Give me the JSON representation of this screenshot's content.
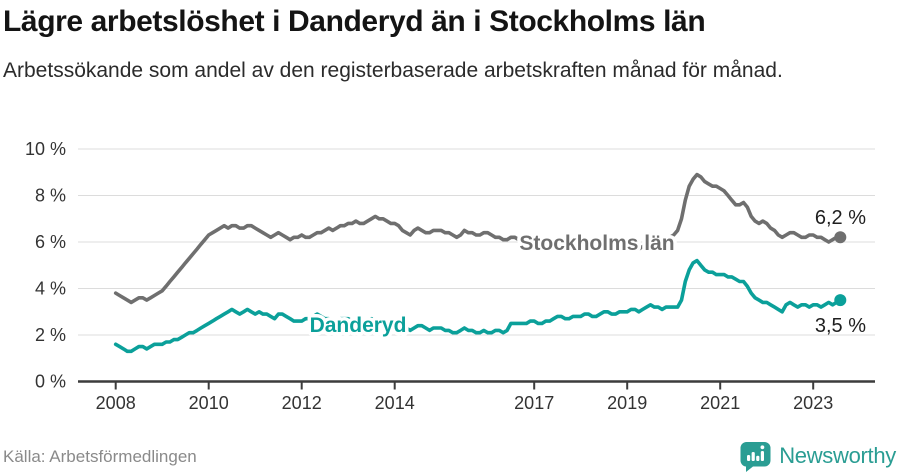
{
  "header": {
    "title": "Lägre arbetslöshet i Danderyd än i Stockholms län",
    "subtitle": "Arbetssökande som andel av den registerbaserade arbetskraften månad för månad."
  },
  "footer": {
    "source": "Källa: Arbetsförmedlingen",
    "brand": "Newsworthy"
  },
  "colors": {
    "grid": "#dcdcdc",
    "axis": "#3c3c3c",
    "tick_label": "#333333",
    "value_label": "#1f1f1f",
    "series_gray": "#6f6f6f",
    "series_teal": "#0ba09a",
    "brand_teal": "#2a9d93",
    "background": "#ffffff"
  },
  "chart_data": {
    "type": "line",
    "title": "Lägre arbetslöshet i Danderyd än i Stockholms län",
    "subtitle": "Arbetssökande som andel av den registerbaserade arbetskraften månad för månad.",
    "frequency": "monthly",
    "x_start": {
      "year": 2008,
      "month": 1
    },
    "x_end": {
      "year": 2023,
      "month": 8
    },
    "ylim": [
      0,
      10
    ],
    "grid": true,
    "legend_position": "inline-on-line",
    "yticks": {
      "values": [
        0,
        2,
        4,
        6,
        8,
        10
      ],
      "labels": [
        "0 %",
        "2 %",
        "4 %",
        "6 %",
        "8 %",
        "10 %"
      ]
    },
    "xticks": {
      "years": [
        2008,
        2010,
        2012,
        2014,
        2017,
        2019,
        2021,
        2023
      ],
      "labels": [
        "2008",
        "2010",
        "2012",
        "2014",
        "2017",
        "2019",
        "2021",
        "2023"
      ]
    },
    "series": [
      {
        "name": "Stockholms län",
        "color": "#6f6f6f",
        "end_label": "6,2 %",
        "values": [
          3.8,
          3.7,
          3.6,
          3.5,
          3.4,
          3.5,
          3.6,
          3.6,
          3.5,
          3.6,
          3.7,
          3.8,
          3.9,
          4.1,
          4.3,
          4.5,
          4.7,
          4.9,
          5.1,
          5.3,
          5.5,
          5.7,
          5.9,
          6.1,
          6.3,
          6.4,
          6.5,
          6.6,
          6.7,
          6.6,
          6.7,
          6.7,
          6.6,
          6.6,
          6.7,
          6.7,
          6.6,
          6.5,
          6.4,
          6.3,
          6.2,
          6.3,
          6.4,
          6.3,
          6.2,
          6.1,
          6.2,
          6.2,
          6.3,
          6.2,
          6.2,
          6.3,
          6.4,
          6.4,
          6.5,
          6.6,
          6.5,
          6.6,
          6.7,
          6.7,
          6.8,
          6.8,
          6.9,
          6.8,
          6.8,
          6.9,
          7.0,
          7.1,
          7.0,
          7.0,
          6.9,
          6.8,
          6.8,
          6.7,
          6.5,
          6.4,
          6.3,
          6.5,
          6.6,
          6.5,
          6.4,
          6.4,
          6.5,
          6.5,
          6.5,
          6.4,
          6.4,
          6.3,
          6.2,
          6.3,
          6.5,
          6.4,
          6.4,
          6.3,
          6.3,
          6.4,
          6.4,
          6.3,
          6.2,
          6.2,
          6.1,
          6.1,
          6.2,
          6.2,
          6.1,
          6.0,
          6.0,
          6.1,
          6.0,
          6.0,
          5.9,
          5.9,
          5.8,
          5.9,
          6.0,
          6.0,
          5.9,
          5.9,
          5.9,
          6.0,
          5.9,
          5.9,
          5.8,
          5.8,
          5.7,
          5.8,
          5.9,
          5.9,
          5.8,
          5.7,
          5.7,
          5.8,
          5.8,
          5.7,
          5.7,
          5.7,
          5.8,
          5.9,
          6.0,
          6.0,
          6.0,
          6.0,
          6.1,
          6.2,
          6.3,
          6.5,
          7.0,
          7.8,
          8.4,
          8.7,
          8.9,
          8.8,
          8.6,
          8.5,
          8.4,
          8.4,
          8.3,
          8.2,
          8.0,
          7.8,
          7.6,
          7.6,
          7.7,
          7.5,
          7.1,
          6.9,
          6.8,
          6.9,
          6.8,
          6.6,
          6.5,
          6.3,
          6.2,
          6.3,
          6.4,
          6.4,
          6.3,
          6.2,
          6.2,
          6.3,
          6.3,
          6.2,
          6.2,
          6.1,
          6.0,
          6.1,
          6.2,
          6.2
        ]
      },
      {
        "name": "Danderyd",
        "color": "#0ba09a",
        "end_label": "3,5 %",
        "values": [
          1.6,
          1.5,
          1.4,
          1.3,
          1.3,
          1.4,
          1.5,
          1.5,
          1.4,
          1.5,
          1.6,
          1.6,
          1.6,
          1.7,
          1.7,
          1.8,
          1.8,
          1.9,
          2.0,
          2.1,
          2.1,
          2.2,
          2.3,
          2.4,
          2.5,
          2.6,
          2.7,
          2.8,
          2.9,
          3.0,
          3.1,
          3.0,
          2.9,
          3.0,
          3.1,
          3.0,
          2.9,
          3.0,
          2.9,
          2.9,
          2.8,
          2.7,
          2.9,
          2.9,
          2.8,
          2.7,
          2.6,
          2.6,
          2.6,
          2.7,
          2.7,
          2.8,
          2.9,
          2.8,
          2.7,
          2.7,
          2.6,
          2.6,
          2.7,
          2.7,
          2.7,
          2.6,
          2.6,
          2.5,
          2.5,
          2.6,
          2.7,
          2.6,
          2.5,
          2.4,
          2.4,
          2.4,
          2.4,
          2.3,
          2.4,
          2.3,
          2.2,
          2.3,
          2.4,
          2.4,
          2.3,
          2.2,
          2.3,
          2.3,
          2.3,
          2.2,
          2.2,
          2.1,
          2.1,
          2.2,
          2.3,
          2.2,
          2.2,
          2.1,
          2.1,
          2.2,
          2.1,
          2.1,
          2.2,
          2.2,
          2.1,
          2.2,
          2.5,
          2.5,
          2.5,
          2.5,
          2.5,
          2.6,
          2.6,
          2.5,
          2.5,
          2.6,
          2.6,
          2.7,
          2.8,
          2.8,
          2.7,
          2.7,
          2.8,
          2.8,
          2.8,
          2.9,
          2.9,
          2.8,
          2.8,
          2.9,
          3.0,
          3.0,
          2.9,
          2.9,
          3.0,
          3.0,
          3.0,
          3.1,
          3.1,
          3.0,
          3.1,
          3.2,
          3.3,
          3.2,
          3.2,
          3.1,
          3.2,
          3.2,
          3.2,
          3.2,
          3.5,
          4.3,
          4.8,
          5.1,
          5.2,
          5.0,
          4.8,
          4.7,
          4.7,
          4.6,
          4.6,
          4.6,
          4.5,
          4.5,
          4.4,
          4.3,
          4.3,
          4.1,
          3.8,
          3.6,
          3.5,
          3.4,
          3.4,
          3.3,
          3.2,
          3.1,
          3.0,
          3.3,
          3.4,
          3.3,
          3.2,
          3.3,
          3.3,
          3.2,
          3.3,
          3.3,
          3.2,
          3.3,
          3.4,
          3.3,
          3.4,
          3.5
        ]
      }
    ]
  }
}
